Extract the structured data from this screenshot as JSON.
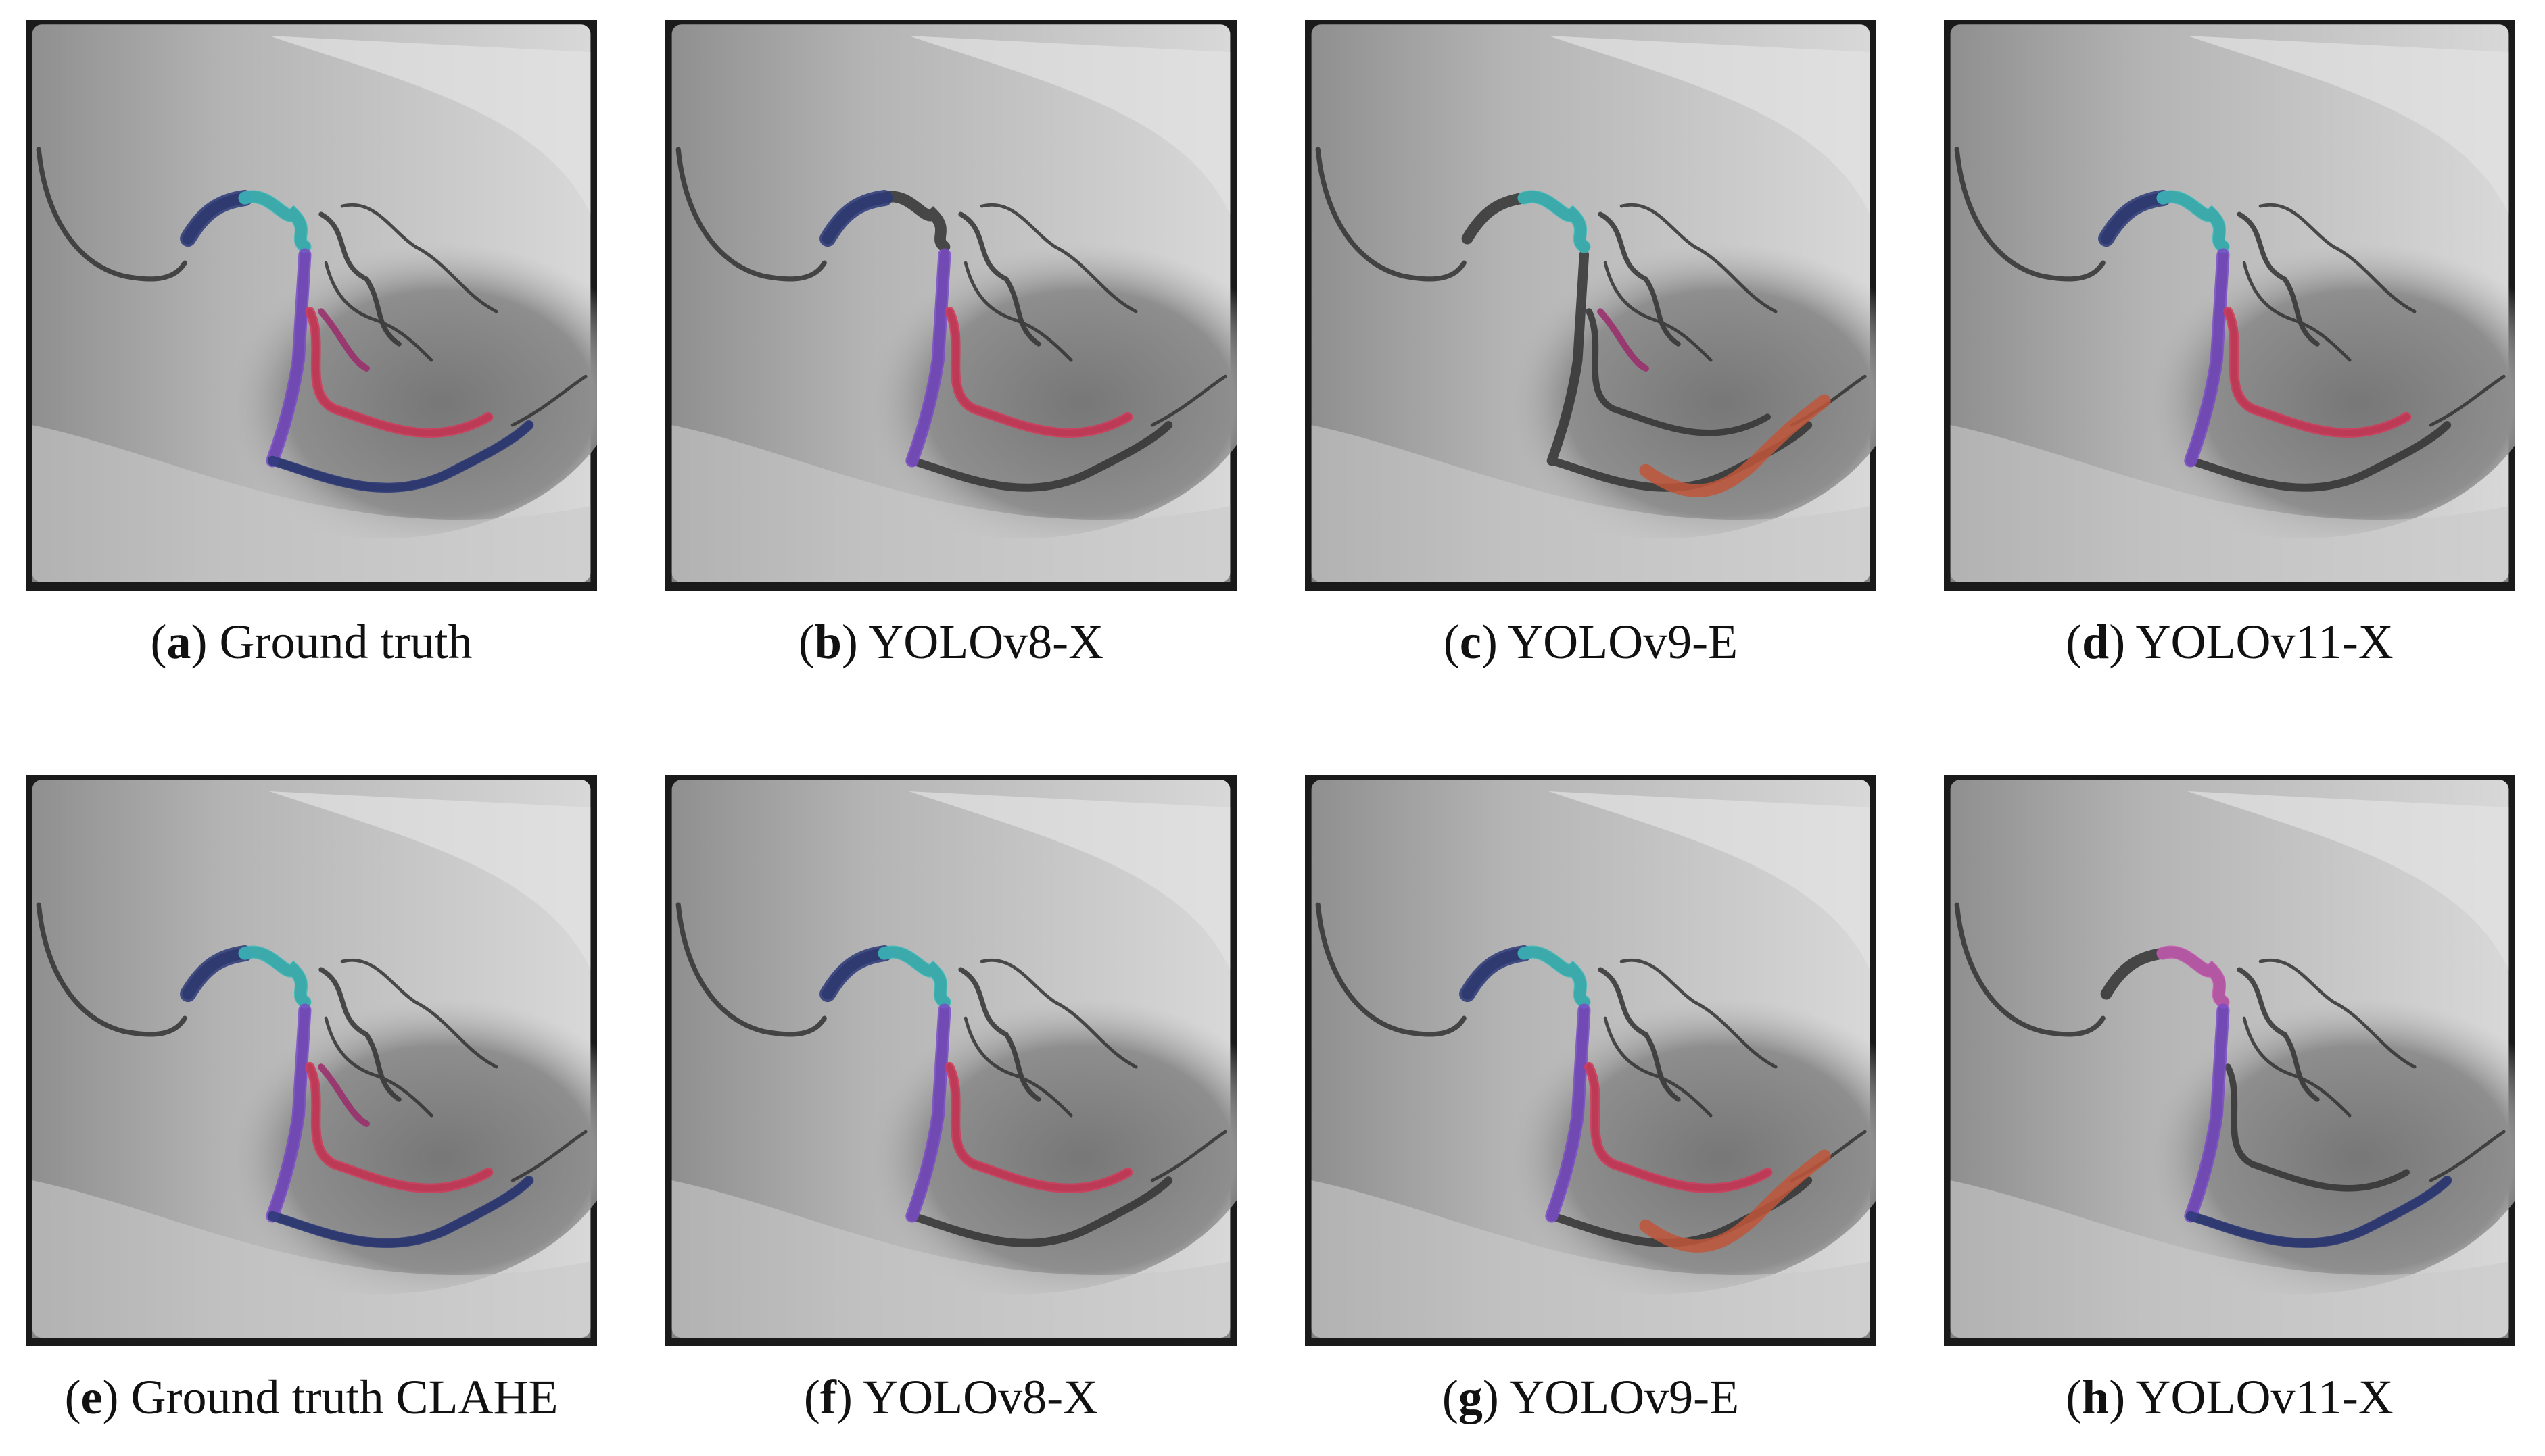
{
  "figure": {
    "panels": [
      {
        "caption": "(a) Ground truth"
      },
      {
        "caption": "(b) YOLOv8-X"
      },
      {
        "caption": "(c) YOLOv9-E"
      },
      {
        "caption": "(d) YOLOv11-X"
      },
      {
        "caption": "(e) Ground truth CLAHE"
      },
      {
        "caption": "(f) YOLOv8-X"
      },
      {
        "caption": "(g) YOLOv9-E"
      },
      {
        "caption": "(h) YOLOv11-X"
      }
    ]
  }
}
